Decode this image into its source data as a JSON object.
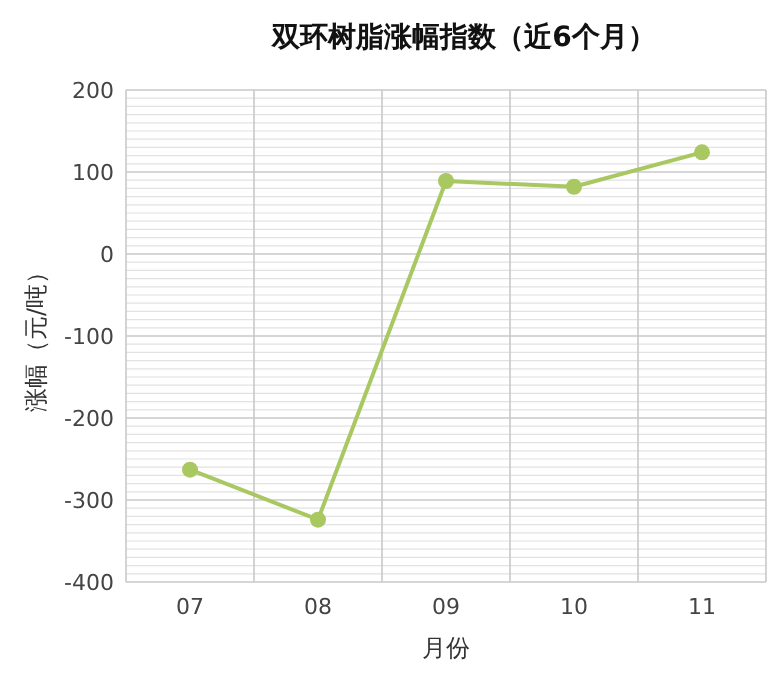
{
  "chart_data": {
    "type": "line",
    "title": "双环树脂涨幅指数（近6个月）",
    "xlabel": "月份",
    "ylabel": "涨幅（元/吨）",
    "categories": [
      "07",
      "08",
      "09",
      "10",
      "11"
    ],
    "series": [
      {
        "color": "#a9c862",
        "values": [
          -263,
          -324,
          89,
          82,
          124
        ]
      }
    ],
    "ylim": [
      -400,
      200
    ],
    "yticks": [
      -400,
      -300,
      -200,
      -100,
      0,
      100,
      200
    ],
    "grid": true,
    "marker": "circle"
  }
}
